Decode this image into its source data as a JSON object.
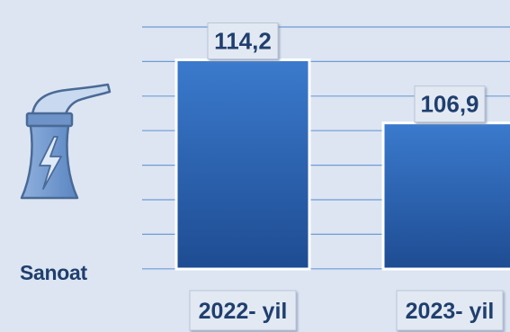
{
  "sector": {
    "label": "Sanoat",
    "icon": "factory-icon"
  },
  "colors": {
    "background": "#dde5f2",
    "bar_fill_top": "#3b7acd",
    "bar_fill_bottom": "#1e4c92",
    "bar_border": "#ffffff",
    "grid": "#6e9bd6",
    "text": "#1f3f6e",
    "label_box": "#e3e9f3"
  },
  "chart_data": {
    "type": "bar",
    "categories": [
      "2022- yil",
      "2023- yil"
    ],
    "values": [
      114.2,
      106.9
    ],
    "value_labels": [
      "114,2",
      "106,9"
    ],
    "title": "",
    "xlabel": "",
    "ylabel": "",
    "ylim": [
      90,
      118
    ],
    "grid": true,
    "legend": "none"
  }
}
